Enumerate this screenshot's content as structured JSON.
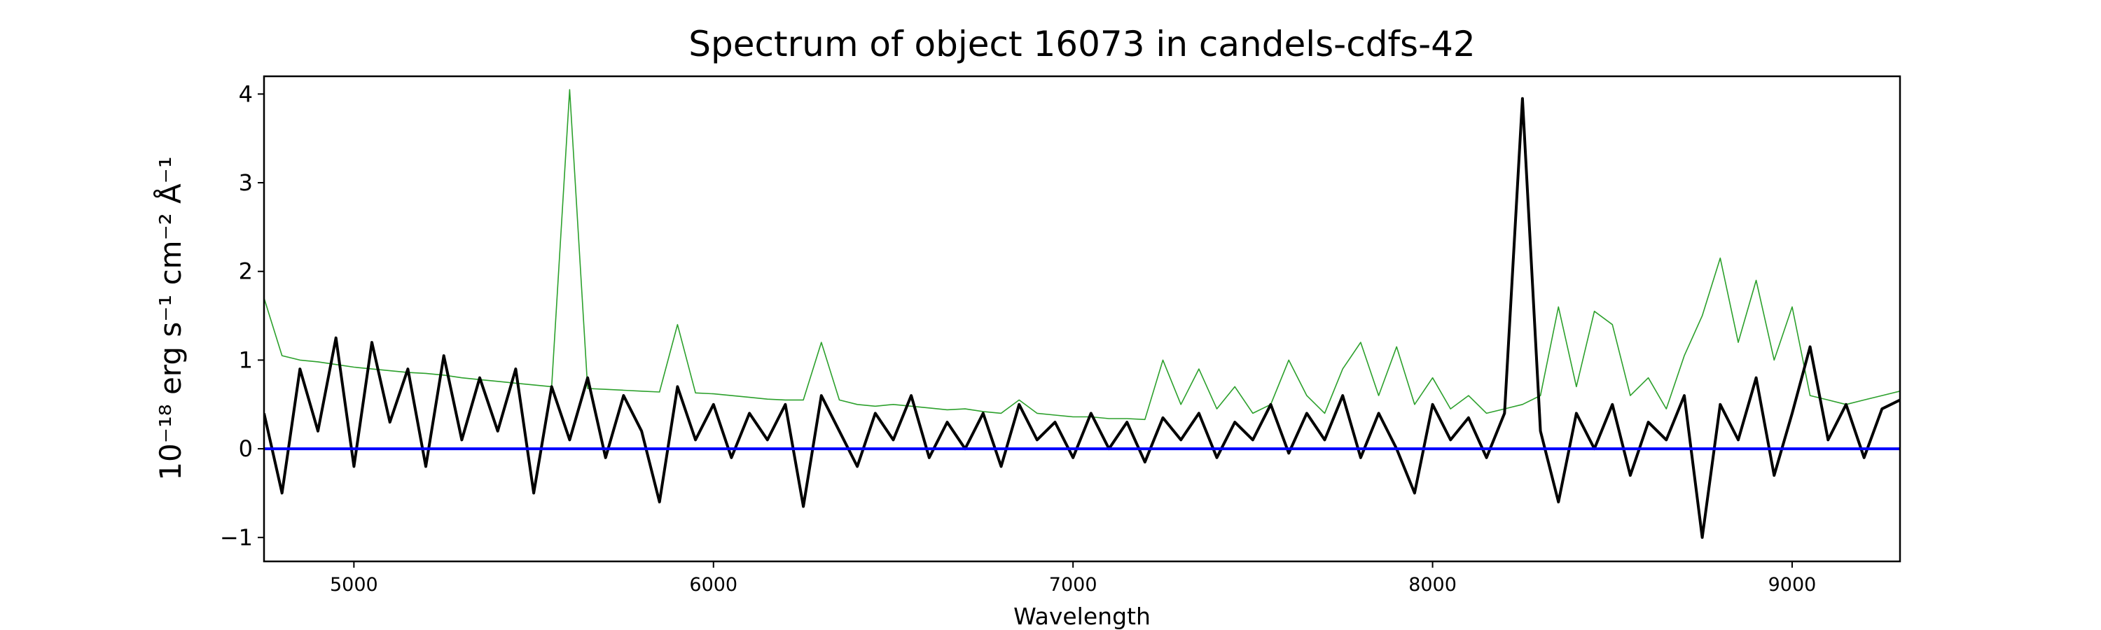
{
  "chart_data": {
    "type": "line",
    "title": "Spectrum of object 16073 in candels-cdfs-42",
    "xlabel": "Wavelength",
    "ylabel": "10⁻¹⁸ erg s⁻¹ cm⁻² Å⁻¹",
    "x": [
      4750,
      4800,
      4850,
      4900,
      4950,
      5000,
      5050,
      5100,
      5150,
      5200,
      5250,
      5300,
      5350,
      5400,
      5450,
      5500,
      5550,
      5600,
      5650,
      5700,
      5750,
      5800,
      5850,
      5900,
      5950,
      6000,
      6050,
      6100,
      6150,
      6200,
      6250,
      6300,
      6350,
      6400,
      6450,
      6500,
      6550,
      6600,
      6650,
      6700,
      6750,
      6800,
      6850,
      6900,
      6950,
      7000,
      7050,
      7100,
      7150,
      7200,
      7250,
      7300,
      7350,
      7400,
      7450,
      7500,
      7550,
      7600,
      7650,
      7700,
      7750,
      7800,
      7850,
      7900,
      7950,
      8000,
      8050,
      8100,
      8150,
      8200,
      8250,
      8300,
      8350,
      8400,
      8450,
      8500,
      8550,
      8600,
      8650,
      8700,
      8750,
      8800,
      8850,
      8900,
      8950,
      9000,
      9050,
      9100,
      9150,
      9200,
      9250,
      9300
    ],
    "series": [
      {
        "color": "#2ca02c",
        "values": [
          1.7,
          1.05,
          1.0,
          0.98,
          0.95,
          0.92,
          0.9,
          0.88,
          0.86,
          0.85,
          0.83,
          0.8,
          0.78,
          0.76,
          0.74,
          0.72,
          0.7,
          4.05,
          0.68,
          0.67,
          0.66,
          0.65,
          0.64,
          1.4,
          0.63,
          0.62,
          0.6,
          0.58,
          0.56,
          0.55,
          0.55,
          1.2,
          0.55,
          0.5,
          0.48,
          0.5,
          0.48,
          0.46,
          0.44,
          0.45,
          0.42,
          0.4,
          0.55,
          0.4,
          0.38,
          0.36,
          0.36,
          0.34,
          0.34,
          0.33,
          1.0,
          0.5,
          0.9,
          0.45,
          0.7,
          0.4,
          0.5,
          1.0,
          0.6,
          0.4,
          0.9,
          1.2,
          0.6,
          1.15,
          0.5,
          0.8,
          0.45,
          0.6,
          0.4,
          0.45,
          0.5,
          0.6,
          1.6,
          0.7,
          1.55,
          1.4,
          0.6,
          0.8,
          0.45,
          1.05,
          1.5,
          2.15,
          1.2,
          1.9,
          1.0,
          1.6,
          0.6,
          0.55,
          0.5,
          0.55,
          0.6,
          0.65
        ]
      },
      {
        "color": "#000000",
        "values": [
          0.4,
          -0.5,
          0.9,
          0.2,
          1.25,
          -0.2,
          1.2,
          0.3,
          0.9,
          -0.2,
          1.05,
          0.1,
          0.8,
          0.2,
          0.9,
          -0.5,
          0.7,
          0.1,
          0.8,
          -0.1,
          0.6,
          0.2,
          -0.6,
          0.7,
          0.1,
          0.5,
          -0.1,
          0.4,
          0.1,
          0.5,
          -0.65,
          0.6,
          0.2,
          -0.2,
          0.4,
          0.1,
          0.6,
          -0.1,
          0.3,
          0.0,
          0.4,
          -0.2,
          0.5,
          0.1,
          0.3,
          -0.1,
          0.4,
          0.0,
          0.3,
          -0.15,
          0.35,
          0.1,
          0.4,
          -0.1,
          0.3,
          0.1,
          0.5,
          -0.05,
          0.4,
          0.1,
          0.6,
          -0.1,
          0.4,
          0.0,
          -0.5,
          0.5,
          0.1,
          0.35,
          -0.1,
          0.4,
          3.95,
          0.2,
          -0.6,
          0.4,
          0.0,
          0.5,
          -0.3,
          0.3,
          0.1,
          0.6,
          -1.0,
          0.5,
          0.1,
          0.8,
          -0.3,
          0.4,
          1.15,
          0.1,
          0.5,
          -0.1,
          0.45,
          0.55
        ]
      },
      {
        "color": "#0000ff",
        "x": [
          4750,
          9300
        ],
        "values": [
          0,
          0
        ]
      }
    ],
    "xlim": [
      4750,
      9300
    ],
    "ylim": [
      -1.27,
      4.2
    ],
    "xticks": [
      5000,
      6000,
      7000,
      8000,
      9000
    ],
    "yticks": [
      {
        "value": -1,
        "label": "−1"
      },
      0,
      1,
      2,
      3,
      4
    ]
  }
}
